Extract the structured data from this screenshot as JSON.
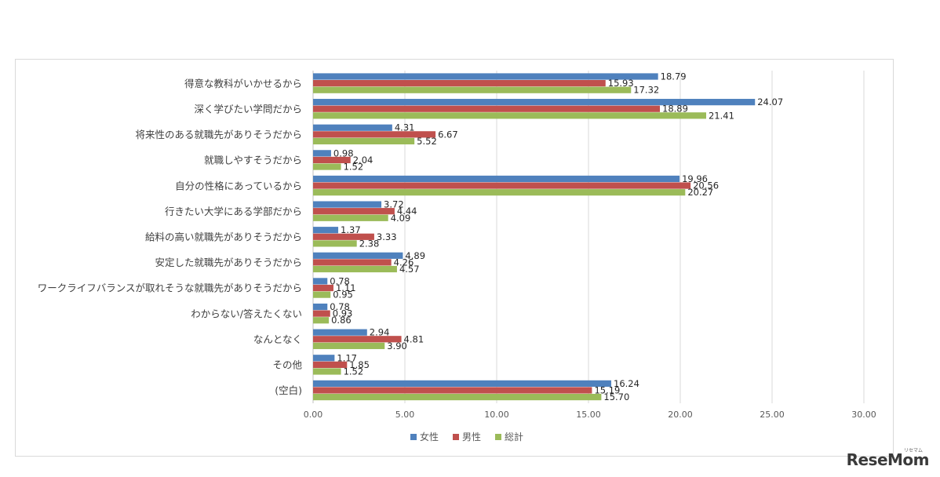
{
  "watermark": "ReseMom",
  "watermark_sub": "リセマム",
  "colors": {
    "女性": "#4f81bd",
    "男性": "#c0504d",
    "総計": "#9bbb59",
    "grid": "#d9d9d9",
    "label": "#404040"
  },
  "chart_data": {
    "type": "bar",
    "orientation": "horizontal",
    "categories": [
      "得意な教科がいかせるから",
      "深く学びたい学問だから",
      "将来性のある就職先がありそうだから",
      "就職しやすそうだから",
      "自分の性格にあっているから",
      "行きたい大学にある学部だから",
      "給料の高い就職先がありそうだから",
      "安定した就職先がありそうだから",
      "ワークライフバランスが取れそうな就職先がありそうだから",
      "わからない/答えたくない",
      "なんとなく",
      "その他",
      "(空白)"
    ],
    "series": [
      {
        "name": "女性",
        "color": "#4f81bd",
        "values": [
          18.79,
          24.07,
          4.31,
          0.98,
          19.96,
          3.72,
          1.37,
          4.89,
          0.78,
          0.78,
          2.94,
          1.17,
          16.24
        ]
      },
      {
        "name": "男性",
        "color": "#c0504d",
        "values": [
          15.93,
          18.89,
          6.67,
          2.04,
          20.56,
          4.44,
          3.33,
          4.26,
          1.11,
          0.93,
          4.81,
          1.85,
          15.19
        ]
      },
      {
        "name": "総計",
        "color": "#9bbb59",
        "values": [
          17.32,
          21.41,
          5.52,
          1.52,
          20.27,
          4.09,
          2.38,
          4.57,
          0.95,
          0.86,
          3.9,
          1.52,
          15.7
        ]
      }
    ],
    "xticks": [
      "0.00",
      "5.00",
      "10.00",
      "15.00",
      "20.00",
      "25.00",
      "30.00"
    ],
    "xlim": [
      0,
      30
    ],
    "grid": true,
    "legend": "bottom-center",
    "title": "",
    "xlabel": "",
    "ylabel": ""
  }
}
